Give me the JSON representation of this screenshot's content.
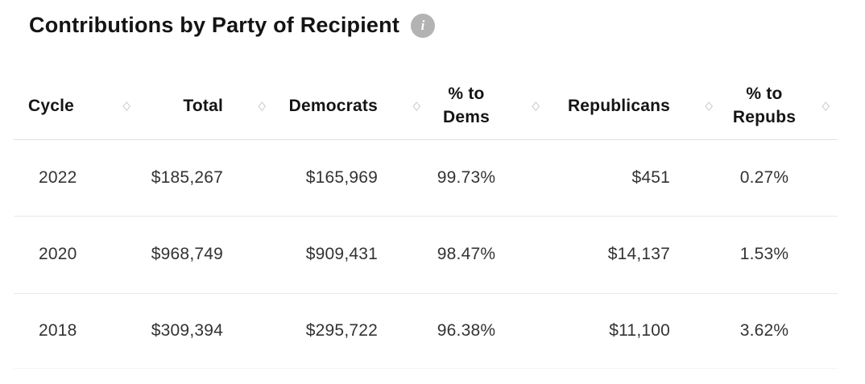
{
  "header": {
    "title": "Contributions by Party of Recipient"
  },
  "icons": {
    "info": "i",
    "sort": "◇"
  },
  "colors": {
    "title_text": "#141414",
    "data_text": "#333333",
    "divider": "#e0e0e0",
    "info_icon_bg": "#b3b3b3",
    "sort_icon": "#b8b8b8"
  },
  "chart_data": {
    "type": "table",
    "title": "Contributions by Party of Recipient",
    "columns": [
      "Cycle",
      "Total",
      "Democrats",
      "% to Dems",
      "Republicans",
      "% to Repubs"
    ],
    "rows": [
      [
        "2022",
        "$185,267",
        "$165,969",
        "99.73%",
        "$451",
        "0.27%"
      ],
      [
        "2020",
        "$968,749",
        "$909,431",
        "98.47%",
        "$14,137",
        "1.53%"
      ],
      [
        "2018",
        "$309,394",
        "$295,722",
        "96.38%",
        "$11,100",
        "3.62%"
      ]
    ],
    "numeric": {
      "cycles": [
        2022,
        2020,
        2018
      ],
      "total_usd": [
        185267,
        968749,
        309394
      ],
      "democrats_usd": [
        165969,
        909431,
        295722
      ],
      "pct_to_dems": [
        99.73,
        98.47,
        96.38
      ],
      "republicans_usd": [
        451,
        14137,
        11100
      ],
      "pct_to_repubs": [
        0.27,
        1.53,
        3.62
      ]
    },
    "layout_hints": {
      "sortable_columns": true,
      "grid": "horizontal-dividers-only"
    }
  }
}
